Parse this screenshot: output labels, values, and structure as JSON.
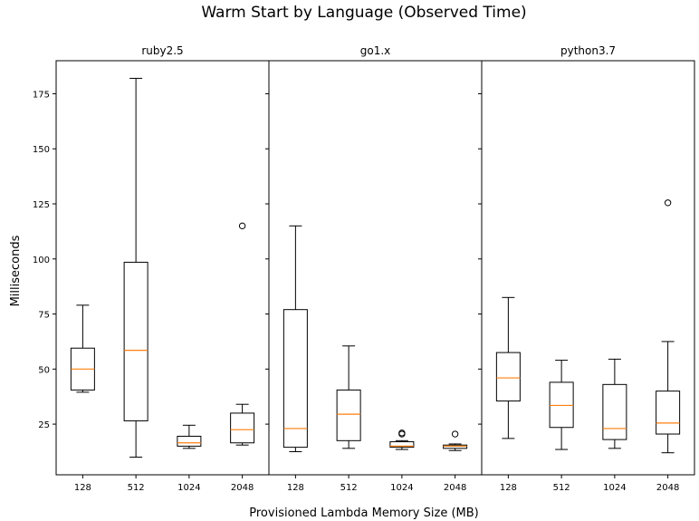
{
  "chart_data": {
    "type": "box",
    "title": "Warm Start by Language (Observed Time)",
    "xlabel": "Provisioned Lambda Memory Size (MB)",
    "ylabel": "Milliseconds",
    "ylim": [
      2,
      190
    ],
    "yticks": [
      25,
      50,
      75,
      100,
      125,
      150,
      175
    ],
    "categories": [
      "128",
      "512",
      "1024",
      "2048"
    ],
    "colors": {
      "median": "#ff7f0e",
      "box": "#000000",
      "background": "#ffffff"
    },
    "panels": [
      {
        "name": "ruby2.5",
        "boxes": [
          {
            "category": "128",
            "whislo": 39.5,
            "q1": 40.5,
            "med": 50.0,
            "q3": 59.5,
            "whishi": 79.0,
            "fliers": []
          },
          {
            "category": "512",
            "whislo": 10.0,
            "q1": 26.5,
            "med": 58.5,
            "q3": 98.5,
            "whishi": 182.0,
            "fliers": []
          },
          {
            "category": "1024",
            "whislo": 14.0,
            "q1": 15.0,
            "med": 16.5,
            "q3": 19.5,
            "whishi": 24.5,
            "fliers": []
          },
          {
            "category": "2048",
            "whislo": 15.5,
            "q1": 16.5,
            "med": 22.5,
            "q3": 30.0,
            "whishi": 34.0,
            "fliers": [
              115.0
            ]
          }
        ]
      },
      {
        "name": "go1.x",
        "boxes": [
          {
            "category": "128",
            "whislo": 12.5,
            "q1": 14.5,
            "med": 23.0,
            "q3": 77.0,
            "whishi": 115.0,
            "fliers": []
          },
          {
            "category": "512",
            "whislo": 14.0,
            "q1": 17.5,
            "med": 29.5,
            "q3": 40.5,
            "whishi": 60.5,
            "fliers": []
          },
          {
            "category": "1024",
            "whislo": 13.5,
            "q1": 14.5,
            "med": 15.0,
            "q3": 17.0,
            "whishi": 17.5,
            "fliers": [
              20.5,
              21.0
            ]
          },
          {
            "category": "2048",
            "whislo": 13.0,
            "q1": 14.0,
            "med": 15.0,
            "q3": 15.5,
            "whishi": 16.0,
            "fliers": [
              20.5
            ]
          }
        ]
      },
      {
        "name": "python3.7",
        "boxes": [
          {
            "category": "128",
            "whislo": 18.5,
            "q1": 35.5,
            "med": 46.0,
            "q3": 57.5,
            "whishi": 82.5,
            "fliers": []
          },
          {
            "category": "512",
            "whislo": 13.5,
            "q1": 23.5,
            "med": 33.5,
            "q3": 44.0,
            "whishi": 54.0,
            "fliers": []
          },
          {
            "category": "1024",
            "whislo": 14.0,
            "q1": 18.0,
            "med": 23.0,
            "q3": 43.0,
            "whishi": 54.5,
            "fliers": []
          },
          {
            "category": "2048",
            "whislo": 12.0,
            "q1": 20.5,
            "med": 25.5,
            "q3": 40.0,
            "whishi": 62.5,
            "fliers": [
              125.5
            ]
          }
        ]
      }
    ]
  }
}
